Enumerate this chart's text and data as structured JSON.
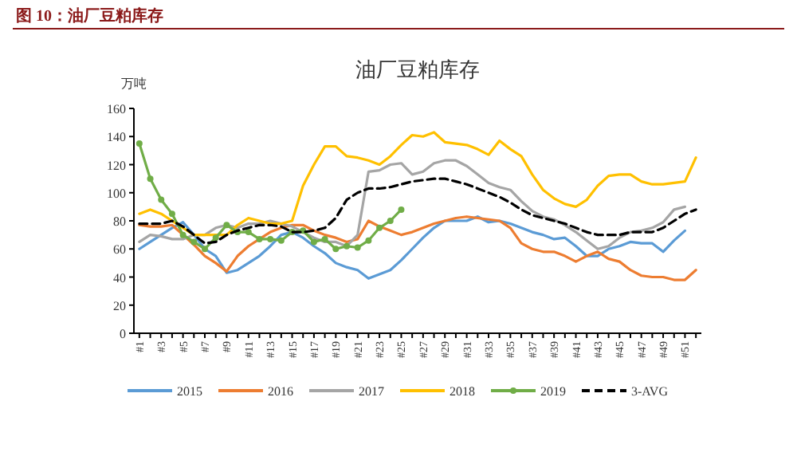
{
  "chart_data": {
    "type": "line",
    "title": "图 10：油厂豆粕库存",
    "subtitle": "油厂豆粕库存",
    "ylabel": "万吨",
    "categories": [
      "#1",
      null,
      "#3",
      null,
      "#5",
      null,
      "#7",
      null,
      "#9",
      null,
      "#11",
      null,
      "#13",
      null,
      "#15",
      null,
      "#17",
      null,
      "#19",
      null,
      "#21",
      null,
      "#23",
      null,
      "#25",
      null,
      "#27",
      null,
      "#29",
      null,
      "#31",
      null,
      "#33",
      null,
      "#35",
      null,
      "#37",
      null,
      "#39",
      null,
      "#41",
      null,
      "#43",
      null,
      "#45",
      null,
      "#47",
      null,
      "#49",
      null,
      "#51",
      null
    ],
    "ylim": [
      0,
      160
    ],
    "yticks": [
      0,
      20,
      40,
      60,
      80,
      100,
      120,
      140,
      160
    ],
    "grid": false,
    "legend": "bottom",
    "series": [
      {
        "name": "2015",
        "color": "#5b9bd5",
        "values": [
          60,
          65,
          70,
          75,
          79,
          70,
          60,
          55,
          43,
          45,
          50,
          55,
          62,
          70,
          72,
          68,
          62,
          57,
          50,
          47,
          45,
          39,
          42,
          45,
          52,
          60,
          68,
          75,
          80,
          80,
          80,
          83,
          79,
          80,
          78,
          75,
          72,
          70,
          67,
          68,
          62,
          55,
          55,
          60,
          62,
          65,
          64,
          64,
          58,
          66,
          73,
          null
        ]
      },
      {
        "name": "2016",
        "color": "#ed7d31",
        "values": [
          77,
          76,
          76,
          77,
          70,
          63,
          55,
          50,
          44,
          55,
          62,
          67,
          72,
          75,
          77,
          77,
          73,
          70,
          68,
          65,
          67,
          80,
          76,
          73,
          70,
          72,
          75,
          78,
          80,
          82,
          83,
          82,
          81,
          80,
          75,
          64,
          60,
          58,
          58,
          55,
          51,
          55,
          58,
          53,
          51,
          45,
          41,
          40,
          40,
          38,
          38,
          45
        ]
      },
      {
        "name": "2017",
        "color": "#a5a5a5",
        "values": [
          65,
          70,
          69,
          67,
          67,
          70,
          70,
          75,
          77,
          75,
          78,
          78,
          80,
          78,
          76,
          72,
          68,
          65,
          65,
          62,
          70,
          115,
          116,
          120,
          121,
          113,
          115,
          121,
          123,
          123,
          119,
          113,
          107,
          104,
          102,
          94,
          87,
          83,
          81,
          77,
          72,
          66,
          60,
          62,
          68,
          72,
          73,
          75,
          79,
          88,
          90,
          null
        ]
      },
      {
        "name": "2018",
        "color": "#ffc000",
        "values": [
          85,
          88,
          85,
          80,
          75,
          70,
          70,
          70,
          70,
          77,
          82,
          80,
          78,
          78,
          80,
          105,
          120,
          133,
          133,
          126,
          125,
          123,
          120,
          126,
          134,
          141,
          140,
          143,
          136,
          135,
          134,
          131,
          127,
          137,
          131,
          126,
          113,
          102,
          96,
          92,
          90,
          95,
          105,
          112,
          113,
          113,
          108,
          106,
          106,
          107,
          108,
          125
        ]
      },
      {
        "name": "2019",
        "color": "#70ad47",
        "marker": "circle",
        "values": [
          135,
          110,
          95,
          85,
          70,
          65,
          60,
          68,
          77,
          72,
          72,
          67,
          67,
          66,
          72,
          73,
          65,
          67,
          60,
          62,
          61,
          66,
          75,
          80,
          88,
          null,
          null,
          null,
          null,
          null,
          null,
          null,
          null,
          null,
          null,
          null,
          null,
          null,
          null,
          null,
          null,
          null,
          null,
          null,
          null,
          null,
          null,
          null,
          null,
          null,
          null,
          null
        ]
      },
      {
        "name": "3-AVG",
        "color": "#000000",
        "line_style": "dashed",
        "values": [
          78,
          78,
          78,
          80,
          76,
          70,
          64,
          65,
          70,
          73,
          75,
          77,
          77,
          76,
          72,
          72,
          73,
          75,
          82,
          95,
          100,
          103,
          103,
          104,
          106,
          108,
          109,
          110,
          110,
          108,
          106,
          103,
          100,
          97,
          93,
          88,
          84,
          82,
          80,
          78,
          75,
          72,
          70,
          70,
          70,
          72,
          72,
          72,
          75,
          80,
          85,
          88
        ]
      }
    ]
  }
}
